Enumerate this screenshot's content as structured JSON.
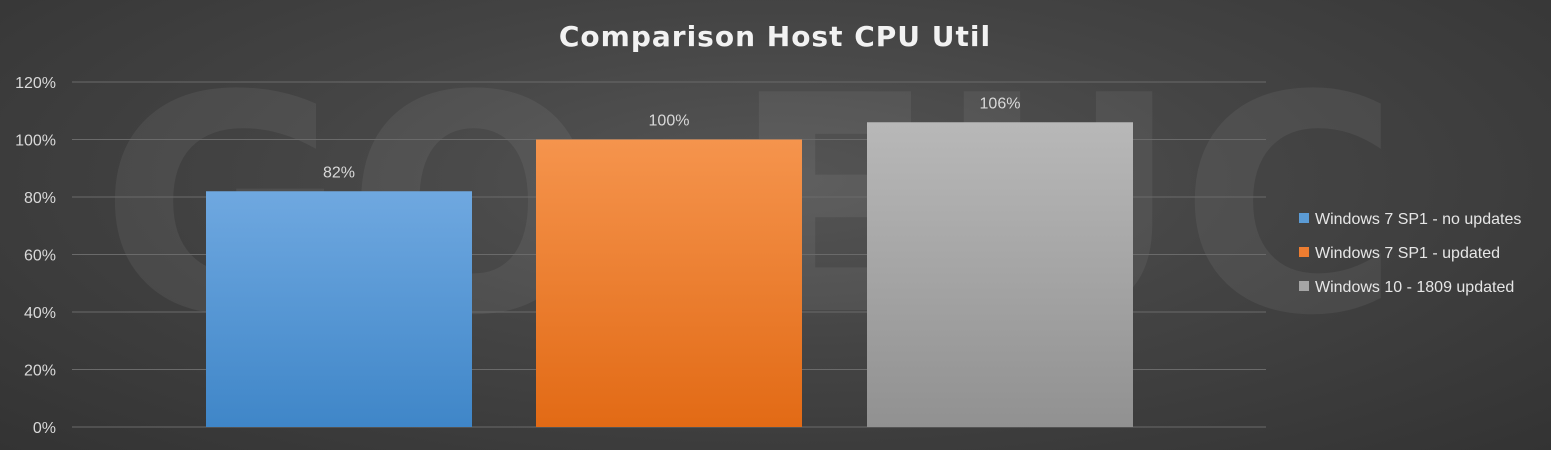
{
  "watermark_text": "GO-EUC",
  "chart_data": {
    "type": "bar",
    "title": "Comparison Host CPU Util",
    "xlabel": "",
    "ylabel": "",
    "ylim": [
      0,
      120
    ],
    "y_ticks": [
      0,
      20,
      40,
      60,
      80,
      100,
      120
    ],
    "y_tick_labels": [
      "0%",
      "20%",
      "40%",
      "60%",
      "80%",
      "100%",
      "120%"
    ],
    "grid": true,
    "legend_position": "right",
    "series": [
      {
        "name": "Windows 7 SP1 - no updates",
        "value": 82,
        "label": "82%",
        "color": "#5b9bd5",
        "color_light": "#6fa8e0",
        "color_dark": "#3f86c8"
      },
      {
        "name": "Windows 7 SP1 - updated",
        "value": 100,
        "label": "100%",
        "color": "#ed7d31",
        "color_light": "#f5944d",
        "color_dark": "#e26a15"
      },
      {
        "name": "Windows 10 - 1809 updated",
        "value": 106,
        "label": "106%",
        "color": "#a5a5a5",
        "color_light": "#b8b8b8",
        "color_dark": "#919191"
      }
    ]
  }
}
